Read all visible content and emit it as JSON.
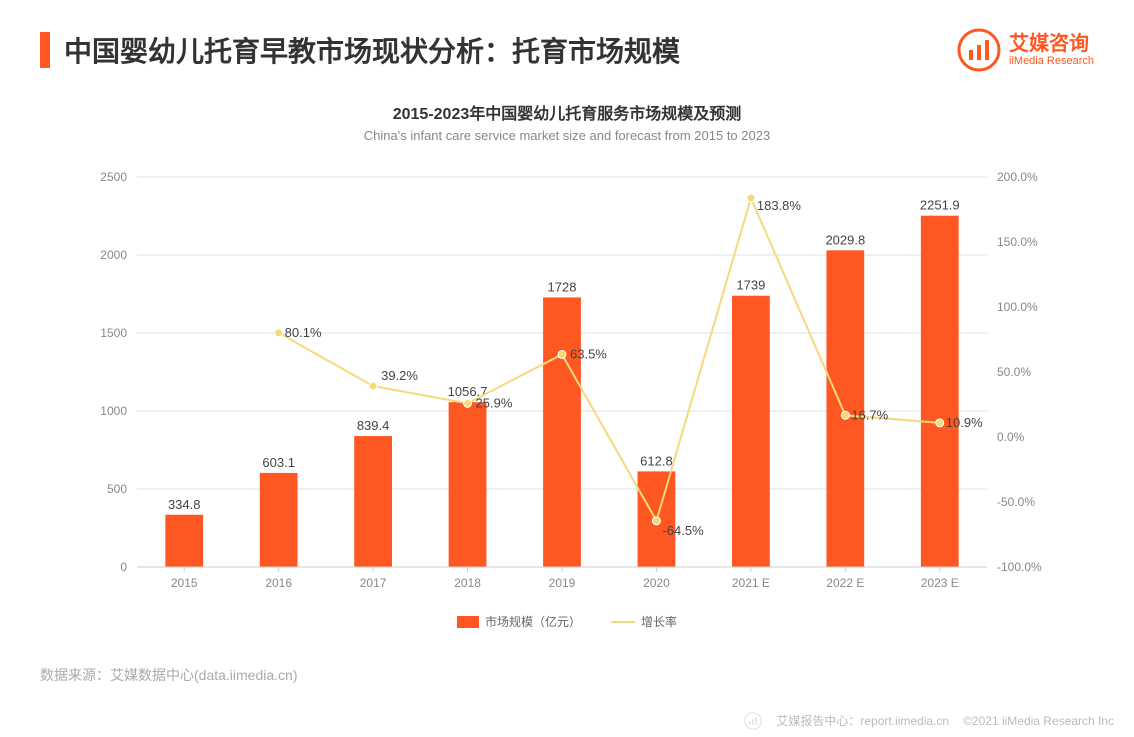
{
  "header": {
    "title": "中国婴幼儿托育早教市场现状分析：托育市场规模",
    "logo_cn": "艾媒咨询",
    "logo_en": "iiMedia Research"
  },
  "chart": {
    "type": "bar+line",
    "title_cn": "2015-2023年中国婴幼儿托育服务市场规模及预测",
    "title_en": "China's infant care service market size and forecast from 2015 to 2023",
    "categories": [
      "2015",
      "2016",
      "2017",
      "2018",
      "2019",
      "2020",
      "2021 E",
      "2022 E",
      "2023 E"
    ],
    "bar": {
      "values": [
        334.8,
        603.1,
        839.4,
        1056.7,
        1728,
        612.8,
        1739,
        2029.8,
        2251.9
      ],
      "labels": [
        "334.8",
        "603.1",
        "839.4",
        "1056.7",
        "1728",
        "612.8",
        "1739",
        "2029.8",
        "2251.9"
      ],
      "color": "#ff5722",
      "bar_width": 0.4
    },
    "line": {
      "values": [
        null,
        80.1,
        39.2,
        25.9,
        63.5,
        -64.5,
        183.8,
        16.7,
        10.9
      ],
      "labels": [
        "",
        "80.1%",
        "39.2%",
        "25.9%",
        "63.5%",
        "-64.5%",
        "183.8%",
        "16.7%",
        "10.9%"
      ],
      "color": "#f5d97a",
      "marker_color": "#f5d97a",
      "line_width": 2
    },
    "y_left": {
      "min": 0,
      "max": 2500,
      "step": 500,
      "ticks": [
        "0",
        "500",
        "1000",
        "1500",
        "2000",
        "2500"
      ]
    },
    "y_right": {
      "min": -100,
      "max": 200,
      "step": 50,
      "ticks": [
        "-100.0%",
        "-50.0%",
        "0.0%",
        "50.0%",
        "100.0%",
        "150.0%",
        "200.0%"
      ]
    },
    "grid_color": "#e0e0e0",
    "background_color": "#ffffff",
    "legend": {
      "bar_label": "市场规模（亿元）",
      "line_label": "增长率"
    }
  },
  "source": "数据来源：艾媒数据中心(data.iimedia.cn)",
  "footer": {
    "report": "艾媒报告中心：report.iimedia.cn",
    "copyright": "©2021  iiMedia Research  Inc"
  },
  "colors": {
    "accent": "#ff5722",
    "line": "#f5d97a",
    "grid": "#e0e0e0",
    "text_muted": "#888888",
    "text_main": "#333333"
  }
}
